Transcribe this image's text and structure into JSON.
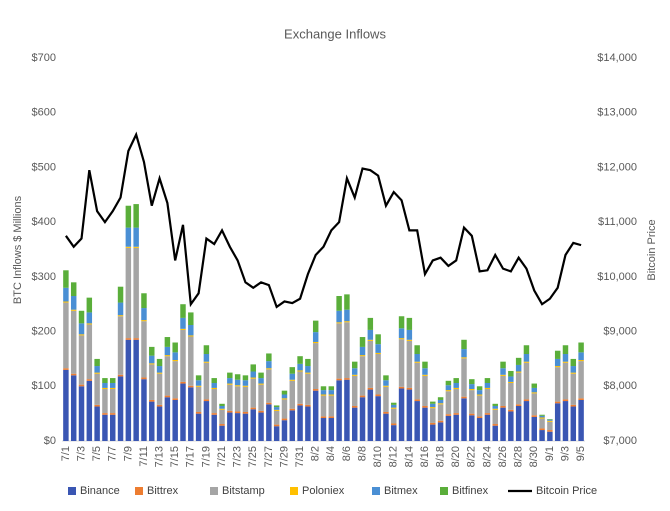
{
  "chart_data": {
    "type": "bar",
    "stacked": true,
    "title": "Exchange Inflows",
    "y_label": "BTC Inflows $ Millions",
    "y2_label": "Bitcoin Price",
    "categories": [
      "7/1",
      null,
      "7/3",
      null,
      "7/5",
      null,
      "7/7",
      null,
      "7/9",
      null,
      "7/11",
      null,
      "7/13",
      null,
      "7/15",
      null,
      "7/17",
      null,
      "7/19",
      null,
      "7/21",
      null,
      "7/23",
      null,
      "7/25",
      null,
      "7/27",
      null,
      "7/29",
      null,
      "7/31",
      null,
      "8/2",
      null,
      "8/4",
      null,
      "8/6",
      null,
      "8/8",
      null,
      "8/10",
      null,
      "8/12",
      null,
      "8/14",
      null,
      "8/16",
      null,
      "8/18",
      null,
      "8/20",
      null,
      "8/22",
      null,
      "8/24",
      null,
      "8/26",
      null,
      "8/28",
      null,
      "8/30",
      null,
      "9/1",
      null,
      "9/3",
      null,
      "9/5"
    ],
    "series": [
      {
        "name": "Binance",
        "color": "#3a56b3",
        "values": [
          130,
          120,
          100,
          110,
          63,
          48,
          48,
          118,
          185,
          185,
          113,
          72,
          63,
          80,
          75,
          105,
          98,
          50,
          73,
          48,
          28,
          52,
          51,
          50,
          58,
          52,
          67,
          27,
          38,
          56,
          65,
          63,
          92,
          42,
          42,
          111,
          112,
          61,
          80,
          94,
          82,
          50,
          29,
          96,
          94,
          73,
          61,
          30,
          34,
          46,
          48,
          78,
          47,
          42,
          48,
          28,
          61,
          54,
          64,
          73,
          44,
          20,
          17,
          69,
          73,
          63,
          75
        ]
      },
      {
        "name": "Bittrex",
        "color": "#ed7d31",
        "values": [
          3,
          3,
          3,
          3,
          3,
          3,
          3,
          3,
          3,
          3,
          3,
          3,
          3,
          3,
          3,
          3,
          3,
          3,
          3,
          3,
          3,
          3,
          3,
          3,
          3,
          3,
          3,
          3,
          3,
          3,
          3,
          3,
          3,
          3,
          3,
          3,
          3,
          3,
          3,
          3,
          3,
          3,
          3,
          3,
          3,
          3,
          3,
          3,
          3,
          3,
          3,
          3,
          3,
          3,
          3,
          3,
          3,
          3,
          3,
          3,
          3,
          3,
          3,
          3,
          3,
          3,
          3
        ]
      },
      {
        "name": "Bitstamp",
        "color": "#a5a5a5",
        "values": [
          120,
          115,
          90,
          100,
          57,
          44,
          44,
          107,
          165,
          165,
          103,
          65,
          57,
          72,
          68,
          95,
          90,
          46,
          67,
          44,
          26,
          48,
          46,
          46,
          53,
          48,
          61,
          25,
          35,
          51,
          59,
          57,
          84,
          38,
          38,
          101,
          102,
          55,
          72,
          86,
          74,
          46,
          27,
          87,
          86,
          67,
          55,
          27,
          30,
          42,
          44,
          70,
          43,
          38,
          44,
          26,
          55,
          49,
          58,
          67,
          40,
          18,
          15,
          63,
          67,
          57,
          68
        ]
      },
      {
        "name": "Poloniex",
        "color": "#ffc000",
        "values": [
          2,
          2,
          2,
          2,
          2,
          2,
          2,
          2,
          2,
          2,
          2,
          2,
          2,
          2,
          2,
          2,
          2,
          2,
          2,
          2,
          2,
          2,
          2,
          2,
          2,
          2,
          2,
          2,
          2,
          2,
          2,
          2,
          2,
          2,
          2,
          2,
          2,
          2,
          2,
          2,
          2,
          2,
          2,
          2,
          2,
          2,
          2,
          2,
          2,
          2,
          2,
          2,
          2,
          2,
          2,
          2,
          2,
          2,
          2,
          2,
          2,
          2,
          2,
          2,
          2,
          2,
          2
        ]
      },
      {
        "name": "Bitmex",
        "color": "#4a8fd4",
        "values": [
          25,
          25,
          20,
          20,
          12,
          9,
          9,
          23,
          35,
          35,
          22,
          14,
          12,
          15,
          14,
          20,
          19,
          10,
          14,
          9,
          5,
          10,
          10,
          10,
          11,
          10,
          13,
          5,
          7,
          11,
          12,
          12,
          18,
          8,
          8,
          21,
          21,
          12,
          15,
          18,
          16,
          10,
          5,
          18,
          18,
          14,
          12,
          6,
          6,
          9,
          9,
          15,
          9,
          8,
          9,
          5,
          12,
          10,
          12,
          14,
          8,
          3,
          2,
          13,
          14,
          12,
          14
        ]
      },
      {
        "name": "Bitfinex",
        "color": "#5aae3a",
        "values": [
          32,
          25,
          23,
          27,
          13,
          9,
          9,
          29,
          40,
          43,
          27,
          16,
          13,
          18,
          18,
          25,
          23,
          9,
          16,
          9,
          4,
          10,
          10,
          9,
          13,
          10,
          14,
          3,
          7,
          12,
          14,
          13,
          21,
          7,
          7,
          27,
          28,
          12,
          18,
          22,
          18,
          9,
          4,
          22,
          22,
          16,
          12,
          4,
          5,
          8,
          9,
          17,
          9,
          7,
          9,
          4,
          12,
          10,
          13,
          16,
          8,
          2,
          1,
          15,
          16,
          13,
          18
        ]
      },
      {
        "name": "Bitcoin Price",
        "color": "#000000",
        "type": "line",
        "axis": "y2",
        "values": [
          10750,
          10550,
          10700,
          11950,
          11200,
          11000,
          11200,
          11450,
          12300,
          12600,
          12100,
          11300,
          11800,
          11350,
          10300,
          10950,
          9500,
          9700,
          10700,
          10600,
          10850,
          10550,
          10300,
          9900,
          9800,
          9900,
          9850,
          9450,
          9550,
          9520,
          9600,
          10050,
          10400,
          10550,
          10850,
          11000,
          11800,
          11450,
          11980,
          11950,
          11850,
          11300,
          11550,
          11400,
          10850,
          10850,
          10050,
          10300,
          10350,
          10200,
          10300,
          10900,
          10750,
          10100,
          10120,
          10400,
          10150,
          10100,
          10350,
          10150,
          9750,
          9500,
          9600,
          9800,
          10400,
          10620,
          10580
        ]
      }
    ],
    "ylim": [
      0,
      700
    ],
    "yticks": [
      {
        "value": 0,
        "label": "$0"
      },
      {
        "value": 100,
        "label": "$100"
      },
      {
        "value": 200,
        "label": "$200"
      },
      {
        "value": 300,
        "label": "$300"
      },
      {
        "value": 400,
        "label": "$400"
      },
      {
        "value": 500,
        "label": "$500"
      },
      {
        "value": 600,
        "label": "$600"
      },
      {
        "value": 700,
        "label": "$700"
      }
    ],
    "y2lim": [
      7000,
      14000
    ],
    "y2ticks": [
      {
        "value": 7000,
        "label": "$7,000"
      },
      {
        "value": 8000,
        "label": "$8,000"
      },
      {
        "value": 9000,
        "label": "$9,000"
      },
      {
        "value": 10000,
        "label": "$10,000"
      },
      {
        "value": 11000,
        "label": "$11,000"
      },
      {
        "value": 12000,
        "label": "$12,000"
      },
      {
        "value": 13000,
        "label": "$13,000"
      },
      {
        "value": 14000,
        "label": "$14,000"
      }
    ],
    "legend": "bottom"
  }
}
